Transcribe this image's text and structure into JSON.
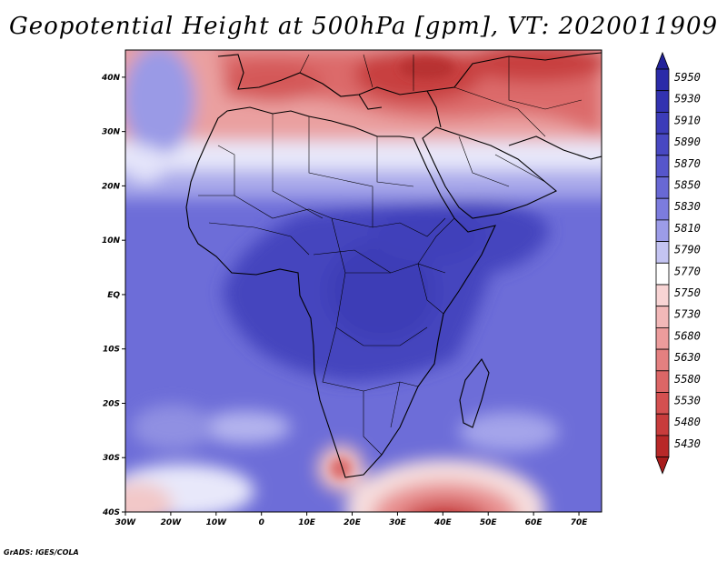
{
  "title": "Geopotential Height at 500hPa [gpm], VT: 2020011909",
  "footer": "GrADS: IGES/COLA",
  "map": {
    "variable": "Geopotential Height",
    "level_hpa": 500,
    "units": "gpm",
    "valid_time": "2020011909",
    "lon_range": [
      -30,
      75
    ],
    "lat_range": [
      -40,
      45
    ],
    "lon_ticks": [
      {
        "value": -30,
        "label": "30W"
      },
      {
        "value": -20,
        "label": "20W"
      },
      {
        "value": -10,
        "label": "10W"
      },
      {
        "value": 0,
        "label": "0"
      },
      {
        "value": 10,
        "label": "10E"
      },
      {
        "value": 20,
        "label": "20E"
      },
      {
        "value": 30,
        "label": "30E"
      },
      {
        "value": 40,
        "label": "40E"
      },
      {
        "value": 50,
        "label": "50E"
      },
      {
        "value": 60,
        "label": "60E"
      },
      {
        "value": 70,
        "label": "70E"
      }
    ],
    "lat_ticks": [
      {
        "value": 40,
        "label": "40N"
      },
      {
        "value": 30,
        "label": "30N"
      },
      {
        "value": 20,
        "label": "20N"
      },
      {
        "value": 10,
        "label": "10N"
      },
      {
        "value": 0,
        "label": "EQ"
      },
      {
        "value": -10,
        "label": "10S"
      },
      {
        "value": -20,
        "label": "20S"
      },
      {
        "value": -30,
        "label": "30S"
      },
      {
        "value": -40,
        "label": "40S"
      }
    ]
  },
  "colorbar": {
    "levels": [
      {
        "label": "5950",
        "color": "#2a2aa8"
      },
      {
        "label": "5930",
        "color": "#3232b0"
      },
      {
        "label": "5910",
        "color": "#3c3cb9"
      },
      {
        "label": "5890",
        "color": "#4848c2"
      },
      {
        "label": "5870",
        "color": "#5656cb"
      },
      {
        "label": "5850",
        "color": "#6868d4"
      },
      {
        "label": "5830",
        "color": "#7c7cde"
      },
      {
        "label": "5810",
        "color": "#9c9ce8"
      },
      {
        "label": "5790",
        "color": "#c4c4f2"
      },
      {
        "label": "5770",
        "color": "#ffffff"
      },
      {
        "label": "5750",
        "color": "#f8d4d4"
      },
      {
        "label": "5730",
        "color": "#f2b8b8"
      },
      {
        "label": "5680",
        "color": "#ec9c9c"
      },
      {
        "label": "5630",
        "color": "#e48080"
      },
      {
        "label": "5580",
        "color": "#dc6666"
      },
      {
        "label": "5530",
        "color": "#d45050"
      },
      {
        "label": "5480",
        "color": "#c83c3c"
      },
      {
        "label": "5430",
        "color": "#b82828"
      }
    ],
    "top_arrow_color": "#22229a",
    "bottom_arrow_color": "#a81c1c"
  }
}
